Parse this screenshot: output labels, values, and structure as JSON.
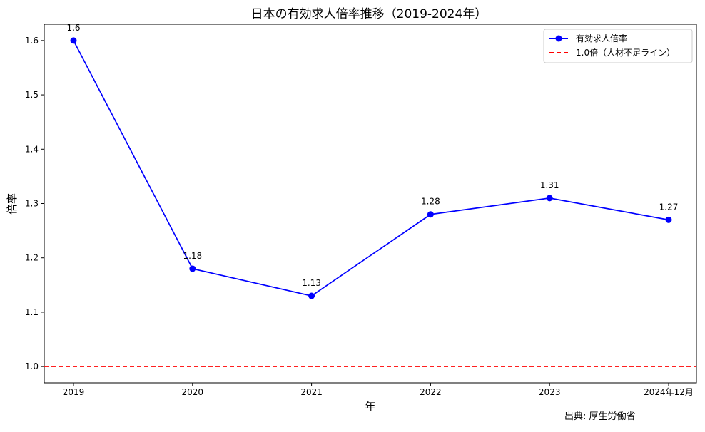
{
  "chart_data": {
    "type": "line",
    "title": "日本の有効求人倍率推移（2019-2024年）",
    "xlabel": "年",
    "ylabel": "倍率",
    "categories": [
      "2019",
      "2020",
      "2021",
      "2022",
      "2023",
      "2024年12月"
    ],
    "series": [
      {
        "name": "有効求人倍率",
        "values": [
          1.6,
          1.18,
          1.13,
          1.28,
          1.31,
          1.27
        ],
        "data_labels": [
          "1.6",
          "1.18",
          "1.13",
          "1.28",
          "1.31",
          "1.27"
        ],
        "color": "#0000ff",
        "marker": "circle"
      }
    ],
    "reference_line": {
      "name": "1.0倍（人材不足ライン）",
      "value": 1.0,
      "color": "#ff0000",
      "style": "dashed"
    },
    "ylim": [
      0.97,
      1.63
    ],
    "yticks": [
      1.0,
      1.1,
      1.2,
      1.3,
      1.4,
      1.5,
      1.6
    ],
    "ytick_labels": [
      "1.0",
      "1.1",
      "1.2",
      "1.3",
      "1.4",
      "1.5",
      "1.6"
    ],
    "grid": false,
    "legend_position": "top-right",
    "source_note": "出典: 厚生労働省"
  }
}
